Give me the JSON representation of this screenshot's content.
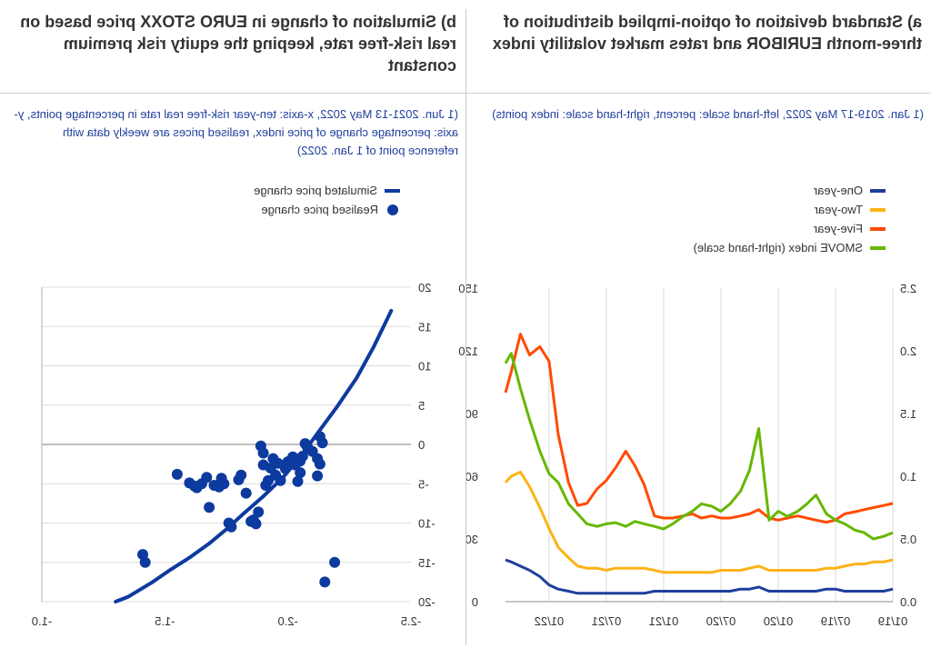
{
  "panels": {
    "a": {
      "title": "a) Standard deviation of option-implied distribution of three-month EURIBOR and rates market volatility index",
      "subtitle": "(1 Jan. 2019-17 May 2022, left-hand scale: percent, right-hand scale: index points)"
    },
    "b": {
      "title": "b) Simulation of change in EURO STOXX price based on real risk-free rate, keeping the equity risk premium constant",
      "subtitle": "(1 Jun. 2021-13 May 2022, x-axis: ten-year risk-free real rate in percentage points, y-axis: percentage change of price index, realised prices are weekly data with reference point of 1 Jan. 2022)"
    }
  },
  "chart_data": [
    {
      "type": "line",
      "x_tick_labels": [
        "01/19",
        "07/19",
        "01/20",
        "07/20",
        "01/21",
        "07/21",
        "01/22"
      ],
      "x_range": [
        "2019-01-01",
        "2022-05-17"
      ],
      "ylim_left": [
        0,
        150
      ],
      "yticks_left": [
        "0",
        "30",
        "60",
        "90",
        "120",
        "150"
      ],
      "ylim_right": [
        0,
        2.5
      ],
      "yticks_right": [
        "0.0",
        "0.5",
        "1.0",
        "1.5",
        "2.0",
        "2.5"
      ],
      "grid": "vertical",
      "legend_position": "top",
      "series": [
        {
          "name": "One-year",
          "color": "#1f3f9c",
          "axis": "left",
          "values": [
            [
              2019.0,
              6
            ],
            [
              2019.08,
              5
            ],
            [
              2019.17,
              5
            ],
            [
              2019.25,
              5
            ],
            [
              2019.33,
              5
            ],
            [
              2019.42,
              5
            ],
            [
              2019.5,
              6
            ],
            [
              2019.58,
              6
            ],
            [
              2019.67,
              5
            ],
            [
              2019.75,
              5
            ],
            [
              2019.83,
              5
            ],
            [
              2019.92,
              5
            ],
            [
              2020.0,
              5
            ],
            [
              2020.08,
              5
            ],
            [
              2020.17,
              7
            ],
            [
              2020.25,
              6
            ],
            [
              2020.33,
              6
            ],
            [
              2020.42,
              5
            ],
            [
              2020.5,
              5
            ],
            [
              2020.58,
              5
            ],
            [
              2020.67,
              5
            ],
            [
              2020.75,
              5
            ],
            [
              2020.83,
              5
            ],
            [
              2020.92,
              5
            ],
            [
              2021.0,
              5
            ],
            [
              2021.08,
              5
            ],
            [
              2021.17,
              4
            ],
            [
              2021.25,
              4
            ],
            [
              2021.33,
              4
            ],
            [
              2021.42,
              4
            ],
            [
              2021.5,
              4
            ],
            [
              2021.58,
              4
            ],
            [
              2021.67,
              4
            ],
            [
              2021.75,
              4
            ],
            [
              2021.83,
              5
            ],
            [
              2021.92,
              6
            ],
            [
              2022.0,
              8
            ],
            [
              2022.08,
              12
            ],
            [
              2022.17,
              15
            ],
            [
              2022.25,
              17
            ],
            [
              2022.33,
              19
            ],
            [
              2022.38,
              20
            ]
          ]
        },
        {
          "name": "Two-year",
          "color": "#fcb316",
          "axis": "left",
          "values": [
            [
              2019.0,
              20
            ],
            [
              2019.08,
              19
            ],
            [
              2019.17,
              19
            ],
            [
              2019.25,
              18
            ],
            [
              2019.33,
              18
            ],
            [
              2019.42,
              17
            ],
            [
              2019.5,
              16
            ],
            [
              2019.58,
              16
            ],
            [
              2019.67,
              15
            ],
            [
              2019.75,
              15
            ],
            [
              2019.83,
              15
            ],
            [
              2019.92,
              15
            ],
            [
              2020.0,
              15
            ],
            [
              2020.08,
              15
            ],
            [
              2020.17,
              17
            ],
            [
              2020.25,
              16
            ],
            [
              2020.33,
              15
            ],
            [
              2020.42,
              15
            ],
            [
              2020.5,
              15
            ],
            [
              2020.58,
              14
            ],
            [
              2020.67,
              14
            ],
            [
              2020.75,
              14
            ],
            [
              2020.83,
              14
            ],
            [
              2020.92,
              14
            ],
            [
              2021.0,
              14
            ],
            [
              2021.08,
              15
            ],
            [
              2021.17,
              16
            ],
            [
              2021.25,
              16
            ],
            [
              2021.33,
              16
            ],
            [
              2021.42,
              16
            ],
            [
              2021.5,
              15
            ],
            [
              2021.58,
              16
            ],
            [
              2021.67,
              16
            ],
            [
              2021.75,
              17
            ],
            [
              2021.83,
              21
            ],
            [
              2021.92,
              26
            ],
            [
              2022.0,
              35
            ],
            [
              2022.08,
              45
            ],
            [
              2022.17,
              55
            ],
            [
              2022.25,
              62
            ],
            [
              2022.33,
              60
            ],
            [
              2022.38,
              57
            ]
          ]
        },
        {
          "name": "Five-year",
          "color": "#ff4b00",
          "axis": "left",
          "values": [
            [
              2019.0,
              47
            ],
            [
              2019.08,
              46
            ],
            [
              2019.17,
              45
            ],
            [
              2019.25,
              44
            ],
            [
              2019.33,
              43
            ],
            [
              2019.42,
              42
            ],
            [
              2019.5,
              39
            ],
            [
              2019.58,
              38
            ],
            [
              2019.67,
              39
            ],
            [
              2019.75,
              40
            ],
            [
              2019.83,
              41
            ],
            [
              2019.92,
              40
            ],
            [
              2020.0,
              39
            ],
            [
              2020.08,
              40
            ],
            [
              2020.17,
              44
            ],
            [
              2020.25,
              42
            ],
            [
              2020.33,
              41
            ],
            [
              2020.42,
              40
            ],
            [
              2020.5,
              40
            ],
            [
              2020.58,
              41
            ],
            [
              2020.67,
              40
            ],
            [
              2020.75,
              42
            ],
            [
              2020.83,
              41
            ],
            [
              2020.92,
              40
            ],
            [
              2021.0,
              40
            ],
            [
              2021.08,
              41
            ],
            [
              2021.17,
              56
            ],
            [
              2021.25,
              65
            ],
            [
              2021.33,
              72
            ],
            [
              2021.42,
              64
            ],
            [
              2021.5,
              58
            ],
            [
              2021.58,
              54
            ],
            [
              2021.67,
              47
            ],
            [
              2021.75,
              46
            ],
            [
              2021.83,
              57
            ],
            [
              2021.92,
              80
            ],
            [
              2022.0,
              115
            ],
            [
              2022.08,
              122
            ],
            [
              2022.17,
              118
            ],
            [
              2022.25,
              128
            ],
            [
              2022.33,
              110
            ],
            [
              2022.38,
              100
            ]
          ]
        },
        {
          "name": "SMOVE index (right-hand scale)",
          "color": "#65b800",
          "axis": "right",
          "values": [
            [
              2019.0,
              0.55
            ],
            [
              2019.08,
              0.52
            ],
            [
              2019.17,
              0.5
            ],
            [
              2019.25,
              0.55
            ],
            [
              2019.33,
              0.57
            ],
            [
              2019.42,
              0.62
            ],
            [
              2019.5,
              0.65
            ],
            [
              2019.58,
              0.7
            ],
            [
              2019.67,
              0.85
            ],
            [
              2019.75,
              0.78
            ],
            [
              2019.83,
              0.72
            ],
            [
              2019.92,
              0.68
            ],
            [
              2020.0,
              0.72
            ],
            [
              2020.08,
              0.65
            ],
            [
              2020.17,
              1.38
            ],
            [
              2020.25,
              1.05
            ],
            [
              2020.33,
              0.88
            ],
            [
              2020.42,
              0.78
            ],
            [
              2020.5,
              0.72
            ],
            [
              2020.58,
              0.76
            ],
            [
              2020.67,
              0.78
            ],
            [
              2020.75,
              0.72
            ],
            [
              2020.83,
              0.68
            ],
            [
              2020.92,
              0.62
            ],
            [
              2021.0,
              0.58
            ],
            [
              2021.08,
              0.6
            ],
            [
              2021.17,
              0.62
            ],
            [
              2021.25,
              0.64
            ],
            [
              2021.33,
              0.6
            ],
            [
              2021.42,
              0.63
            ],
            [
              2021.5,
              0.62
            ],
            [
              2021.58,
              0.6
            ],
            [
              2021.67,
              0.62
            ],
            [
              2021.75,
              0.7
            ],
            [
              2021.83,
              0.78
            ],
            [
              2021.92,
              0.95
            ],
            [
              2022.0,
              1.02
            ],
            [
              2022.08,
              1.2
            ],
            [
              2022.17,
              1.45
            ],
            [
              2022.25,
              1.7
            ],
            [
              2022.33,
              1.98
            ],
            [
              2022.38,
              1.9
            ]
          ]
        }
      ]
    },
    {
      "type": "scatter",
      "xlim": [
        -2.5,
        -1.0
      ],
      "xticks": [
        "-2.5",
        "-2.0",
        "-1.5",
        "-1.0"
      ],
      "ylim": [
        -20,
        20
      ],
      "yticks": [
        "-20",
        "-15",
        "-10",
        "-5",
        "0",
        "5",
        "10",
        "15",
        "20"
      ],
      "grid": "horizontal",
      "legend_position": "top",
      "series": [
        {
          "name": "Simulated price change",
          "kind": "line",
          "color": "#0d3a9e",
          "points": [
            [
              -2.42,
              17.0
            ],
            [
              -2.35,
              12.5
            ],
            [
              -2.28,
              8.5
            ],
            [
              -2.2,
              4.8
            ],
            [
              -2.12,
              1.4
            ],
            [
              -2.05,
              -1.6
            ],
            [
              -1.98,
              -4.2
            ],
            [
              -1.9,
              -6.6
            ],
            [
              -1.82,
              -8.8
            ],
            [
              -1.75,
              -10.8
            ],
            [
              -1.68,
              -12.6
            ],
            [
              -1.6,
              -14.4
            ],
            [
              -1.52,
              -16.0
            ],
            [
              -1.45,
              -17.5
            ],
            [
              -1.35,
              -19.4
            ],
            [
              -1.3,
              -20.0
            ]
          ]
        },
        {
          "name": "Realised price change",
          "kind": "points",
          "color": "#0d3a9e",
          "points": [
            [
              -2.15,
              -17.5
            ],
            [
              -2.19,
              -15.0
            ],
            [
              -2.13,
              1.0
            ],
            [
              -2.14,
              0.2
            ],
            [
              -2.12,
              -1.8
            ],
            [
              -2.13,
              -2.5
            ],
            [
              -2.12,
              -4.0
            ],
            [
              -2.1,
              -0.9
            ],
            [
              -2.08,
              -0.4
            ],
            [
              -2.07,
              0.1
            ],
            [
              -2.06,
              -1.5
            ],
            [
              -2.05,
              -2.1
            ],
            [
              -2.05,
              -3.6
            ],
            [
              -2.04,
              -4.7
            ],
            [
              -2.03,
              -2.6
            ],
            [
              -2.02,
              -1.6
            ],
            [
              -2.0,
              -2.2
            ],
            [
              -1.99,
              -3.1
            ],
            [
              -1.97,
              -4.6
            ],
            [
              -1.96,
              -2.4
            ],
            [
              -1.95,
              -3.9
            ],
            [
              -1.94,
              -1.8
            ],
            [
              -1.93,
              -3.0
            ],
            [
              -1.92,
              -4.6
            ],
            [
              -1.91,
              -5.2
            ],
            [
              -1.9,
              -1.1
            ],
            [
              -1.9,
              -2.6
            ],
            [
              -1.89,
              -0.2
            ],
            [
              -1.88,
              -8.6
            ],
            [
              -1.87,
              -10.1
            ],
            [
              -1.86,
              -9.6
            ],
            [
              -1.85,
              -9.8
            ],
            [
              -1.83,
              -6.2
            ],
            [
              -1.81,
              -3.9
            ],
            [
              -1.8,
              -4.5
            ],
            [
              -1.77,
              -10.5
            ],
            [
              -1.76,
              -10.0
            ],
            [
              -1.74,
              -5.0
            ],
            [
              -1.73,
              -4.3
            ],
            [
              -1.72,
              -5.4
            ],
            [
              -1.7,
              -5.2
            ],
            [
              -1.68,
              -8.0
            ],
            [
              -1.67,
              -4.2
            ],
            [
              -1.65,
              -5.0
            ],
            [
              -1.63,
              -5.5
            ],
            [
              -1.62,
              -5.3
            ],
            [
              -1.6,
              -4.9
            ],
            [
              -1.55,
              -3.8
            ],
            [
              -1.42,
              -15.0
            ],
            [
              -1.41,
              -14.0
            ]
          ]
        }
      ]
    }
  ]
}
